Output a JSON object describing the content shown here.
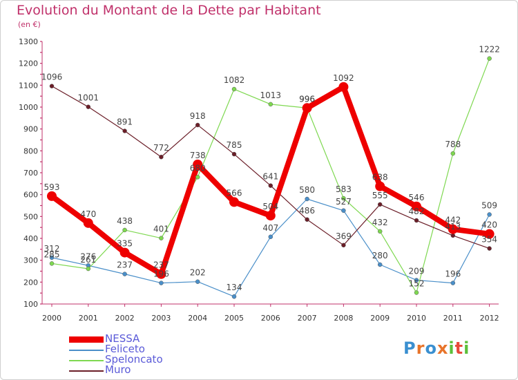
{
  "title": "Evolution du Montant de la Dette par Habitant",
  "subtitle": "(en €)",
  "logo_text": "Proxiti",
  "chart_data": {
    "type": "line",
    "title": "Evolution du Montant de la Dette par Habitant",
    "subtitle": "(en €)",
    "x": [
      "2000",
      "2001",
      "2002",
      "2003",
      "2004",
      "2005",
      "2006",
      "2007",
      "2008",
      "2009",
      "2010",
      "2011",
      "2012"
    ],
    "ylim": [
      100,
      1300
    ],
    "yticks": [
      100,
      200,
      300,
      400,
      500,
      600,
      700,
      800,
      900,
      1000,
      1100,
      1200,
      1300
    ],
    "grid": false,
    "legend_position": "bottom-left",
    "series": [
      {
        "name": "NESSA",
        "color": "#ee0000",
        "values": [
          593,
          470,
          335,
          237,
          738,
          566,
          504,
          996,
          1092,
          638,
          546,
          442,
          420
        ]
      },
      {
        "name": "Feliceto",
        "color": "#4a8fc9",
        "values": [
          312,
          276,
          237,
          196,
          202,
          134,
          407,
          580,
          527,
          280,
          209,
          196,
          509
        ]
      },
      {
        "name": "Speloncato",
        "color": "#7ed850",
        "values": [
          285,
          261,
          438,
          401,
          680,
          1082,
          1013,
          996,
          583,
          432,
          152,
          788,
          1222
        ]
      },
      {
        "name": "Muro",
        "color": "#6b1e28",
        "values": [
          1096,
          1001,
          891,
          772,
          918,
          785,
          641,
          486,
          369,
          555,
          482,
          413,
          354
        ]
      }
    ]
  }
}
